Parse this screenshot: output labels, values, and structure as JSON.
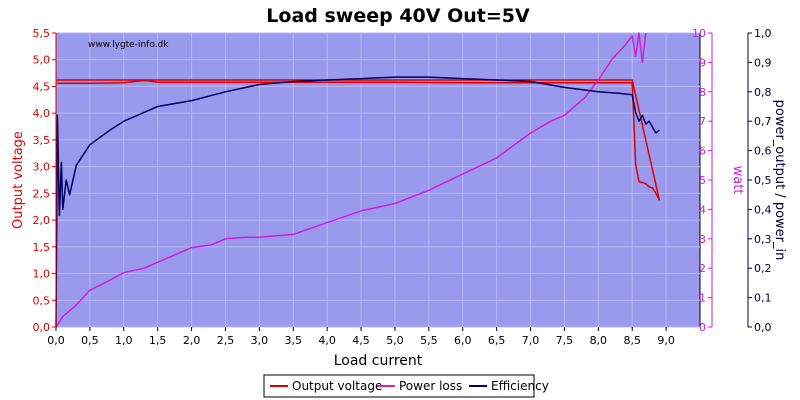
{
  "chart_data": {
    "type": "line",
    "title": "Load sweep 40V Out=5V",
    "watermark": "www.lygte-info.dk",
    "xlabel": "Load current",
    "xlim": [
      0,
      9.5
    ],
    "x_ticks": [
      "0,0",
      "0,5",
      "1,0",
      "1,5",
      "2,0",
      "2,5",
      "3,0",
      "3,5",
      "4,0",
      "4,5",
      "5,0",
      "5,5",
      "6,0",
      "6,5",
      "7,0",
      "7,5",
      "8,0",
      "8,5",
      "9,0"
    ],
    "x_tick_values": [
      0,
      0.5,
      1,
      1.5,
      2,
      2.5,
      3,
      3.5,
      4,
      4.5,
      5,
      5.5,
      6,
      6.5,
      7,
      7.5,
      8,
      8.5,
      9
    ],
    "y_left": {
      "label": "Output voltage",
      "lim": [
        0,
        5.5
      ],
      "color": "#e00000",
      "ticks": [
        "0,0",
        "0,5",
        "1,0",
        "1,5",
        "2,0",
        "2,5",
        "3,0",
        "3,5",
        "4,0",
        "4,5",
        "5,0",
        "5,5"
      ],
      "tick_values": [
        0,
        0.5,
        1,
        1.5,
        2,
        2.5,
        3,
        3.5,
        4,
        4.5,
        5,
        5.5
      ]
    },
    "y_right1": {
      "label": "watt",
      "lim": [
        0,
        10
      ],
      "color": "#d020d0",
      "ticks": [
        "0",
        "1",
        "2",
        "3",
        "4",
        "5",
        "6",
        "7",
        "8",
        "9",
        "10"
      ],
      "tick_values": [
        0,
        1,
        2,
        3,
        4,
        5,
        6,
        7,
        8,
        9,
        10
      ]
    },
    "y_right2": {
      "label": "power_output / power_in",
      "lim": [
        0,
        1
      ],
      "color": "#000040",
      "ticks": [
        "0,0",
        "0,1",
        "0,2",
        "0,3",
        "0,4",
        "0,5",
        "0,6",
        "0,7",
        "0,8",
        "0,9",
        "1,0"
      ],
      "tick_values": [
        0,
        0.1,
        0.2,
        0.3,
        0.4,
        0.5,
        0.6,
        0.7,
        0.8,
        0.9,
        1.0
      ]
    },
    "grid": true,
    "legend_position": "bottom-center",
    "series": [
      {
        "name": "Output voltage",
        "axis": "y_left",
        "color": "#e00000",
        "x": [
          0.0,
          0.5,
          1.0,
          1.2,
          1.3,
          1.4,
          1.5,
          2.0,
          3.0,
          4.0,
          5.0,
          6.0,
          7.0,
          8.0,
          8.5,
          8.55,
          8.6,
          8.7,
          8.75,
          8.8,
          8.85,
          8.9,
          8.5,
          8.0,
          7.0,
          6.0,
          5.0,
          4.0,
          3.0,
          2.0,
          1.0,
          0.5,
          0.0
        ],
        "y": [
          4.56,
          4.56,
          4.57,
          4.6,
          4.61,
          4.6,
          4.58,
          4.58,
          4.58,
          4.58,
          4.58,
          4.57,
          4.57,
          4.57,
          4.57,
          3.05,
          2.72,
          2.68,
          2.62,
          2.6,
          2.5,
          2.38,
          4.62,
          4.62,
          4.62,
          4.62,
          4.62,
          4.62,
          4.62,
          4.62,
          4.62,
          4.62,
          4.62
        ]
      },
      {
        "name": "Power loss",
        "axis": "y_right1",
        "color": "#d020d0",
        "x": [
          0.0,
          0.1,
          0.3,
          0.5,
          0.8,
          1.0,
          1.3,
          1.5,
          1.8,
          2.0,
          2.3,
          2.5,
          2.8,
          3.0,
          3.5,
          4.0,
          4.5,
          5.0,
          5.5,
          6.0,
          6.5,
          7.0,
          7.3,
          7.5,
          7.8,
          8.0,
          8.2,
          8.4,
          8.5,
          8.55,
          8.6,
          8.65,
          8.7
        ],
        "y": [
          0.0,
          0.35,
          0.75,
          1.25,
          1.6,
          1.85,
          2.0,
          2.2,
          2.5,
          2.7,
          2.8,
          3.0,
          3.05,
          3.05,
          3.15,
          3.55,
          3.95,
          4.2,
          4.65,
          5.2,
          5.75,
          6.6,
          7.0,
          7.2,
          7.8,
          8.4,
          9.1,
          9.6,
          9.9,
          9.2,
          10.0,
          9.0,
          10.0
        ]
      },
      {
        "name": "Efficiency",
        "axis": "y_right2",
        "color": "#000060",
        "x": [
          0.0,
          0.02,
          0.05,
          0.08,
          0.1,
          0.15,
          0.2,
          0.3,
          0.5,
          0.8,
          1.0,
          1.3,
          1.5,
          2.0,
          2.5,
          3.0,
          3.5,
          4.0,
          4.5,
          5.0,
          5.5,
          6.0,
          6.5,
          7.0,
          7.5,
          8.0,
          8.3,
          8.5,
          8.55,
          8.6,
          8.65,
          8.7,
          8.75,
          8.8,
          8.85,
          8.9
        ],
        "y": [
          0.0,
          0.72,
          0.38,
          0.56,
          0.4,
          0.5,
          0.45,
          0.55,
          0.62,
          0.67,
          0.7,
          0.73,
          0.75,
          0.77,
          0.8,
          0.825,
          0.835,
          0.84,
          0.845,
          0.85,
          0.85,
          0.845,
          0.84,
          0.835,
          0.815,
          0.8,
          0.795,
          0.79,
          0.73,
          0.7,
          0.72,
          0.69,
          0.7,
          0.68,
          0.66,
          0.67
        ]
      }
    ]
  }
}
